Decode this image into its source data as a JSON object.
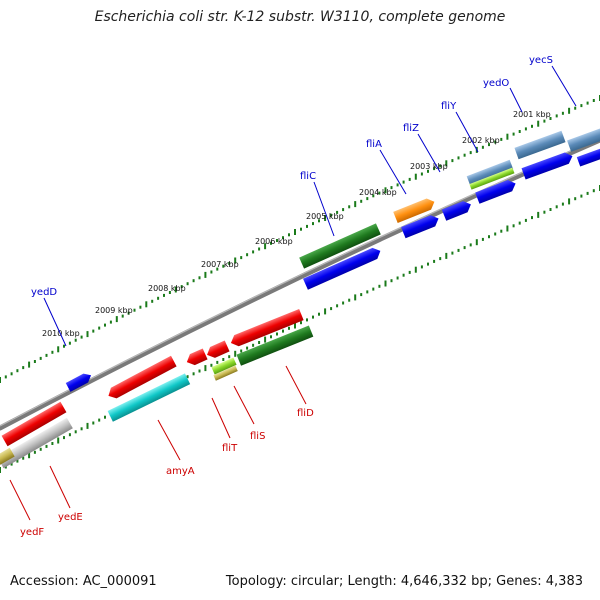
{
  "title": "Escherichia coli str. K-12 substr. W3110, complete genome",
  "footer": {
    "accession": "Accession: AC_000091",
    "summary": "Topology: circular; Length: 4,646,332 bp; Genes: 4,383"
  },
  "colors": {
    "label_top": "#0000cc",
    "label_bottom": "#cc0000",
    "backbone": "#777777",
    "tick": "#1a7a1a"
  },
  "kbp_labels": [
    "2001 kbp",
    "2002 kbp",
    "2003 kbp",
    "2004 kbp",
    "2005 kbp",
    "2006 kbp",
    "2007 kbp",
    "2008 kbp",
    "2009 kbp",
    "2010 kbp"
  ],
  "genes_top": [
    {
      "name": "yecS",
      "color": "#0000cc"
    },
    {
      "name": "yedO",
      "color": "#0000cc"
    },
    {
      "name": "fliY",
      "color": "#0000cc"
    },
    {
      "name": "fliZ",
      "color": "#0000cc"
    },
    {
      "name": "fliA",
      "color": "#0000cc"
    },
    {
      "name": "fliC",
      "color": "#0000cc"
    },
    {
      "name": "yedD",
      "color": "#0000cc"
    }
  ],
  "genes_bottom": [
    {
      "name": "fliD",
      "color": "#cc0000"
    },
    {
      "name": "fliS",
      "color": "#cc0000"
    },
    {
      "name": "fliT",
      "color": "#cc0000"
    },
    {
      "name": "amyA",
      "color": "#cc0000"
    },
    {
      "name": "yedE",
      "color": "#cc0000"
    },
    {
      "name": "yedF",
      "color": "#cc0000"
    }
  ]
}
